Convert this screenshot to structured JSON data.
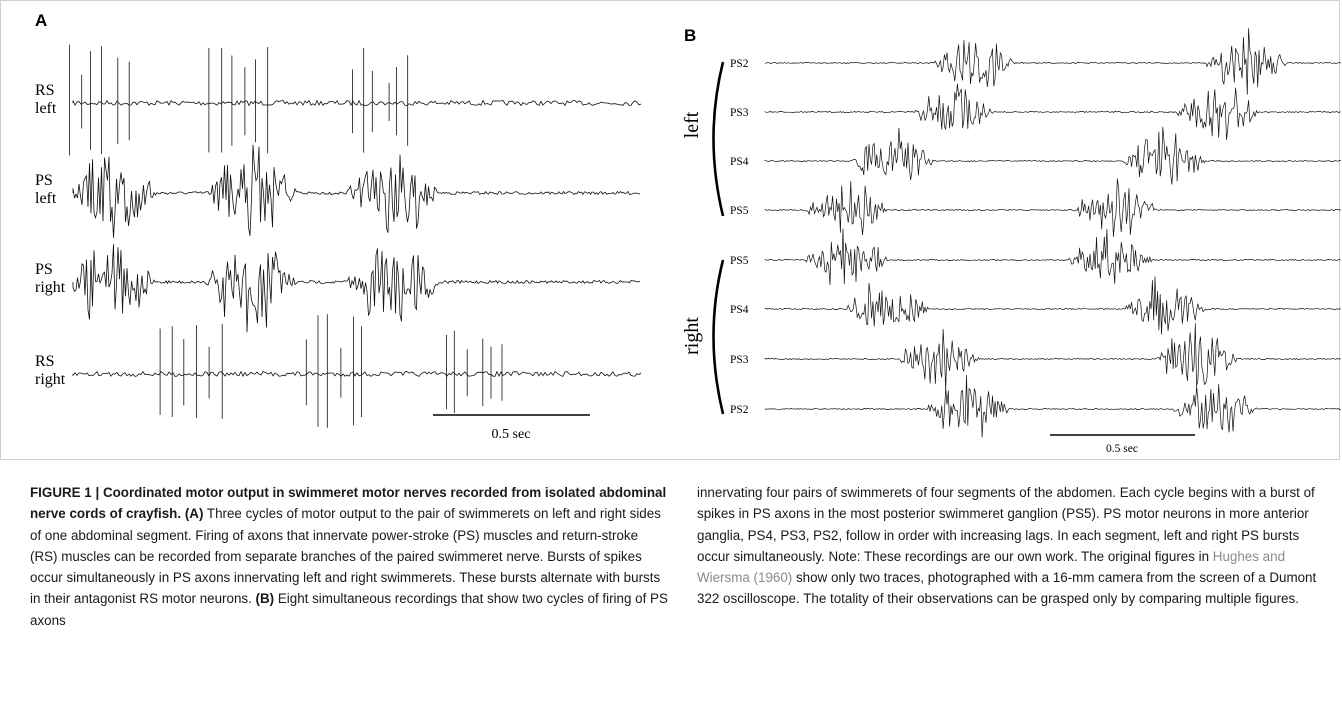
{
  "panel_a": {
    "letter": "A",
    "traces": [
      {
        "line1": "RS",
        "line2": "left",
        "kind": "RS",
        "bursts": [
          0.07,
          0.52,
          0.97
        ]
      },
      {
        "line1": "PS",
        "line2": "left",
        "kind": "PS",
        "bursts": [
          0.12,
          0.57,
          1.02
        ]
      },
      {
        "line1": "PS",
        "line2": "right",
        "kind": "PS",
        "bursts": [
          0.12,
          0.57,
          1.02
        ]
      },
      {
        "line1": "RS",
        "line2": "right",
        "kind": "RS",
        "bursts": [
          0.37,
          0.82,
          1.27
        ]
      }
    ],
    "scale_label": "0.5 sec",
    "scale_value_sec": 0.5
  },
  "panel_b": {
    "letter": "B",
    "group_left": "left",
    "group_right": "right",
    "traces": [
      {
        "label": "PS2",
        "bursts": [
          0.72,
          1.66
        ]
      },
      {
        "label": "PS3",
        "bursts": [
          0.65,
          1.56
        ]
      },
      {
        "label": "PS4",
        "bursts": [
          0.44,
          1.38
        ]
      },
      {
        "label": "PS5",
        "bursts": [
          0.28,
          1.21
        ]
      },
      {
        "label": "PS5",
        "bursts": [
          0.28,
          1.19
        ]
      },
      {
        "label": "PS4",
        "bursts": [
          0.42,
          1.38
        ]
      },
      {
        "label": "PS3",
        "bursts": [
          0.6,
          1.49
        ]
      },
      {
        "label": "PS2",
        "bursts": [
          0.7,
          1.55
        ]
      }
    ],
    "scale_label": "0.5 sec",
    "scale_value_sec": 0.5
  },
  "caption": {
    "title": "FIGURE 1 | Coordinated motor output in swimmeret motor nerves recorded from isolated abdominal nerve cords of crayfish.",
    "a_label": "(A)",
    "a_text": " Three cycles of motor output to the pair of swimmerets on left and right sides of one abdominal segment. Firing of axons that innervate power-stroke (PS) muscles and return-stroke (RS) muscles can be recorded from separate branches of the paired swimmeret nerve. Bursts of spikes occur simultaneously in PS axons innervating left and right swimmerets. These bursts alternate with bursts in their antagonist RS motor neurons.",
    "b_label": "(B)",
    "b_text": " Eight simultaneous recordings that show two cycles of firing of PS axons innervating four pairs of swimmerets of four segments of the abdomen. Each cycle begins with a burst of spikes in PS axons in the most posterior swimmeret ganglion (PS5). PS motor neurons in more anterior ganglia, PS4, PS3, PS2, follow in order with increasing lags. In each segment, left and right PS bursts occur simultaneously. Note: These recordings are our own work. The original figures in ",
    "citation": "Hughes and Wiersma (1960)",
    "b_text_end": " show only two traces, photographed with a 16-mm camera from the screen of a Dumont 322 oscilloscope. The totality of their observations can be grasped only by comparing multiple figures."
  }
}
